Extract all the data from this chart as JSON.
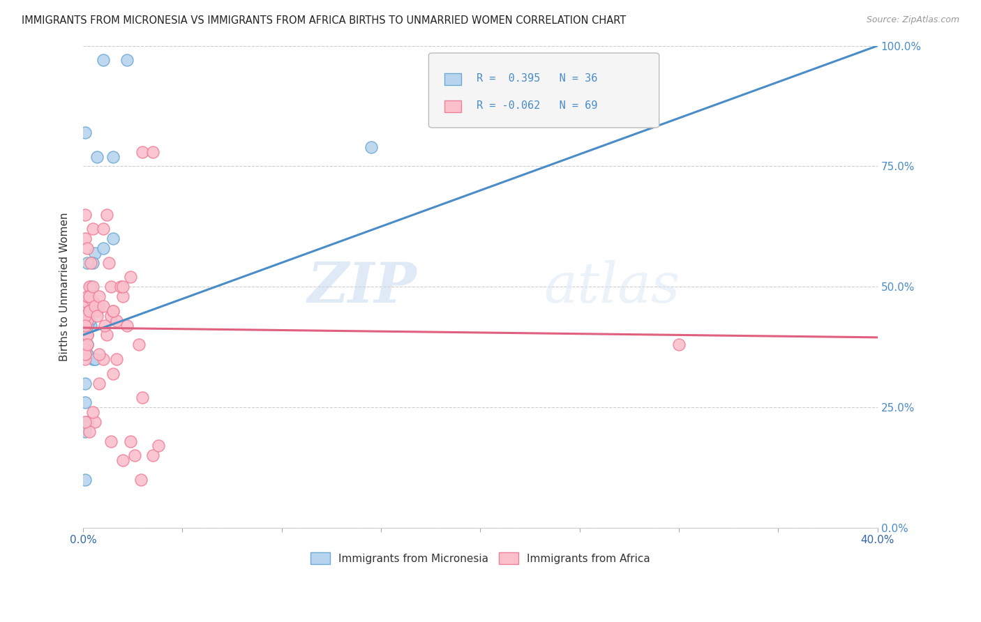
{
  "title": "IMMIGRANTS FROM MICRONESIA VS IMMIGRANTS FROM AFRICA BIRTHS TO UNMARRIED WOMEN CORRELATION CHART",
  "source": "Source: ZipAtlas.com",
  "ylabel": "Births to Unmarried Women",
  "yticks_labels": [
    "0.0%",
    "25.0%",
    "50.0%",
    "75.0%",
    "100.0%"
  ],
  "ytick_values": [
    0.0,
    0.25,
    0.5,
    0.75,
    1.0
  ],
  "xlim": [
    0.0,
    0.4
  ],
  "ylim": [
    0.0,
    1.0
  ],
  "legend_label1": "Immigrants from Micronesia",
  "legend_label2": "Immigrants from Africa",
  "R1": 0.395,
  "N1": 36,
  "R2": -0.062,
  "N2": 69,
  "color_blue_fill": "#b8d4ee",
  "color_pink_fill": "#f9c0cc",
  "color_blue_edge": "#6aaad4",
  "color_pink_edge": "#f08098",
  "color_blue_line": "#4a8cc8",
  "color_pink_line": "#e06080",
  "watermark": "ZIPatlas",
  "blue_line_x0": 0.0,
  "blue_line_y0": 0.4,
  "blue_line_x1": 0.4,
  "blue_line_y1": 1.0,
  "pink_line_x0": 0.0,
  "pink_line_y0": 0.415,
  "pink_line_x1": 0.4,
  "pink_line_y1": 0.395,
  "micronesia_x": [
    0.001,
    0.01,
    0.022,
    0.001,
    0.002,
    0.001,
    0.002,
    0.003,
    0.004,
    0.002,
    0.006,
    0.002,
    0.001,
    0.005,
    0.01,
    0.015,
    0.002,
    0.001,
    0.003,
    0.004,
    0.002,
    0.001,
    0.007,
    0.015,
    0.002,
    0.004,
    0.001,
    0.2,
    0.005,
    0.006,
    0.001,
    0.145,
    0.002,
    0.002,
    0.001,
    0.006
  ],
  "micronesia_y": [
    0.43,
    0.97,
    0.97,
    0.82,
    0.4,
    0.38,
    0.43,
    0.45,
    0.42,
    0.38,
    0.57,
    0.38,
    0.4,
    0.55,
    0.58,
    0.6,
    0.36,
    0.3,
    0.43,
    0.5,
    0.22,
    0.21,
    0.77,
    0.77,
    0.55,
    0.5,
    0.26,
    0.88,
    0.35,
    0.35,
    0.1,
    0.79,
    0.36,
    0.42,
    0.2,
    0.35
  ],
  "africa_x": [
    0.001,
    0.002,
    0.001,
    0.001,
    0.001,
    0.001,
    0.002,
    0.001,
    0.002,
    0.001,
    0.003,
    0.004,
    0.002,
    0.001,
    0.001,
    0.002,
    0.005,
    0.001,
    0.002,
    0.003,
    0.001,
    0.007,
    0.005,
    0.008,
    0.01,
    0.003,
    0.003,
    0.005,
    0.006,
    0.008,
    0.007,
    0.01,
    0.014,
    0.012,
    0.017,
    0.015,
    0.014,
    0.02,
    0.024,
    0.01,
    0.017,
    0.022,
    0.028,
    0.019,
    0.015,
    0.012,
    0.008,
    0.014,
    0.011,
    0.006,
    0.024,
    0.02,
    0.029,
    0.026,
    0.03,
    0.035,
    0.03,
    0.035,
    0.038,
    0.001,
    0.002,
    0.003,
    0.005,
    0.008,
    0.015,
    0.02,
    0.013,
    0.3,
    0.001
  ],
  "africa_y": [
    0.42,
    0.4,
    0.43,
    0.38,
    0.45,
    0.37,
    0.44,
    0.35,
    0.4,
    0.36,
    0.5,
    0.55,
    0.43,
    0.6,
    0.65,
    0.58,
    0.62,
    0.47,
    0.48,
    0.45,
    0.44,
    0.45,
    0.47,
    0.46,
    0.62,
    0.48,
    0.45,
    0.5,
    0.46,
    0.48,
    0.44,
    0.46,
    0.44,
    0.65,
    0.43,
    0.45,
    0.5,
    0.48,
    0.52,
    0.35,
    0.35,
    0.42,
    0.38,
    0.5,
    0.32,
    0.4,
    0.3,
    0.18,
    0.42,
    0.22,
    0.18,
    0.14,
    0.1,
    0.15,
    0.78,
    0.78,
    0.27,
    0.15,
    0.17,
    0.42,
    0.38,
    0.2,
    0.24,
    0.36,
    0.45,
    0.5,
    0.55,
    0.38,
    0.22
  ]
}
